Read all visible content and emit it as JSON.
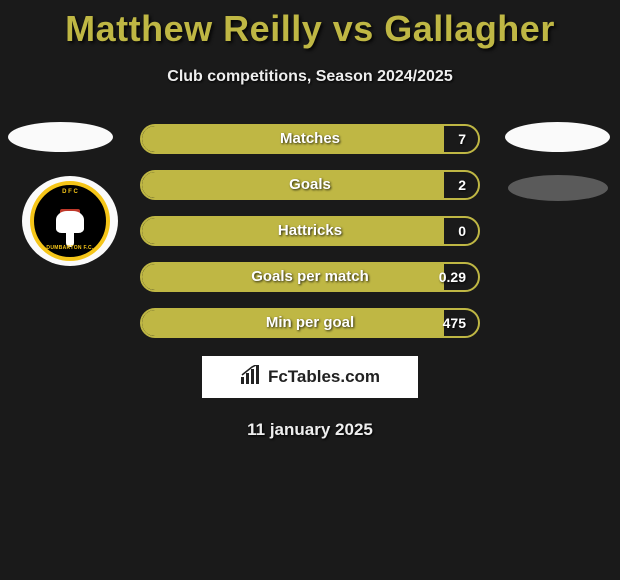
{
  "title": "Matthew Reilly vs Gallagher",
  "subtitle": "Club competitions, Season 2024/2025",
  "date": "11 january 2025",
  "branding": {
    "label": "FcTables.com"
  },
  "colors": {
    "accent": "#bfb744",
    "background": "#1a1a1a",
    "badge_ring": "#f5c518",
    "badge_bg": "#000000",
    "text": "#ffffff"
  },
  "club_badge": {
    "name": "Dumbarton F.C.",
    "top_text": "D F C",
    "bottom_text": "DUMBARTON F.C."
  },
  "stats": [
    {
      "label": "Matches",
      "value_right": "7",
      "fill_pct": 90
    },
    {
      "label": "Goals",
      "value_right": "2",
      "fill_pct": 90
    },
    {
      "label": "Hattricks",
      "value_right": "0",
      "fill_pct": 90
    },
    {
      "label": "Goals per match",
      "value_right": "0.29",
      "fill_pct": 90
    },
    {
      "label": "Min per goal",
      "value_right": "475",
      "fill_pct": 90
    }
  ]
}
